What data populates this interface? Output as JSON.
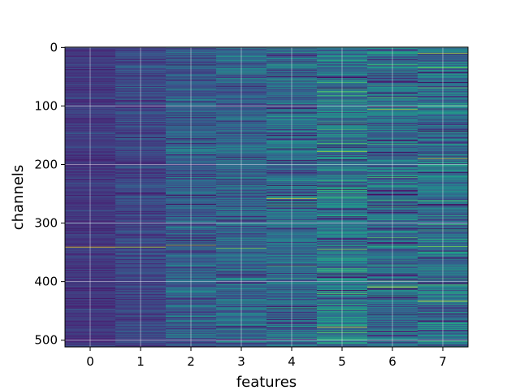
{
  "chart_data": {
    "type": "heatmap",
    "title": "",
    "xlabel": "features",
    "ylabel": "channels",
    "x_categories": [
      "0",
      "1",
      "2",
      "3",
      "4",
      "5",
      "6",
      "7"
    ],
    "y_ticks": [
      0,
      100,
      200,
      300,
      400,
      500
    ],
    "y_tick_labels": [
      "0",
      "100",
      "200",
      "300",
      "400",
      "500"
    ],
    "n_rows": 512,
    "n_cols": 8,
    "y_inverted": true,
    "grid": true,
    "colormap": "viridis",
    "column_base_level": [
      0.18,
      0.22,
      0.3,
      0.33,
      0.34,
      0.4,
      0.36,
      0.38
    ],
    "column_variation": [
      0.06,
      0.09,
      0.14,
      0.15,
      0.17,
      0.2,
      0.18,
      0.19
    ],
    "bright_bands": [
      {
        "col": 0,
        "row": 341,
        "value": 0.98
      },
      {
        "col": 1,
        "row": 341,
        "value": 0.9
      },
      {
        "col": 2,
        "row": 338,
        "value": 0.85
      },
      {
        "col": 3,
        "row": 343,
        "value": 0.8
      },
      {
        "col": 4,
        "row": 258,
        "value": 0.95
      },
      {
        "col": 4,
        "row": 270,
        "value": 0.7
      },
      {
        "col": 5,
        "row": 478,
        "value": 0.98
      },
      {
        "col": 5,
        "row": 60,
        "value": 0.72
      },
      {
        "col": 5,
        "row": 178,
        "value": 0.85
      },
      {
        "col": 5,
        "row": 345,
        "value": 0.85
      },
      {
        "col": 6,
        "row": 409,
        "value": 0.98
      },
      {
        "col": 6,
        "row": 106,
        "value": 0.9
      },
      {
        "col": 6,
        "row": 222,
        "value": 0.7
      },
      {
        "col": 6,
        "row": 30,
        "value": 0.7
      },
      {
        "col": 7,
        "row": 433,
        "value": 0.98
      },
      {
        "col": 7,
        "row": 10,
        "value": 0.9
      },
      {
        "col": 7,
        "row": 190,
        "value": 0.9
      },
      {
        "col": 7,
        "row": 35,
        "value": 0.8
      },
      {
        "col": 7,
        "row": 340,
        "value": 0.8
      }
    ]
  }
}
